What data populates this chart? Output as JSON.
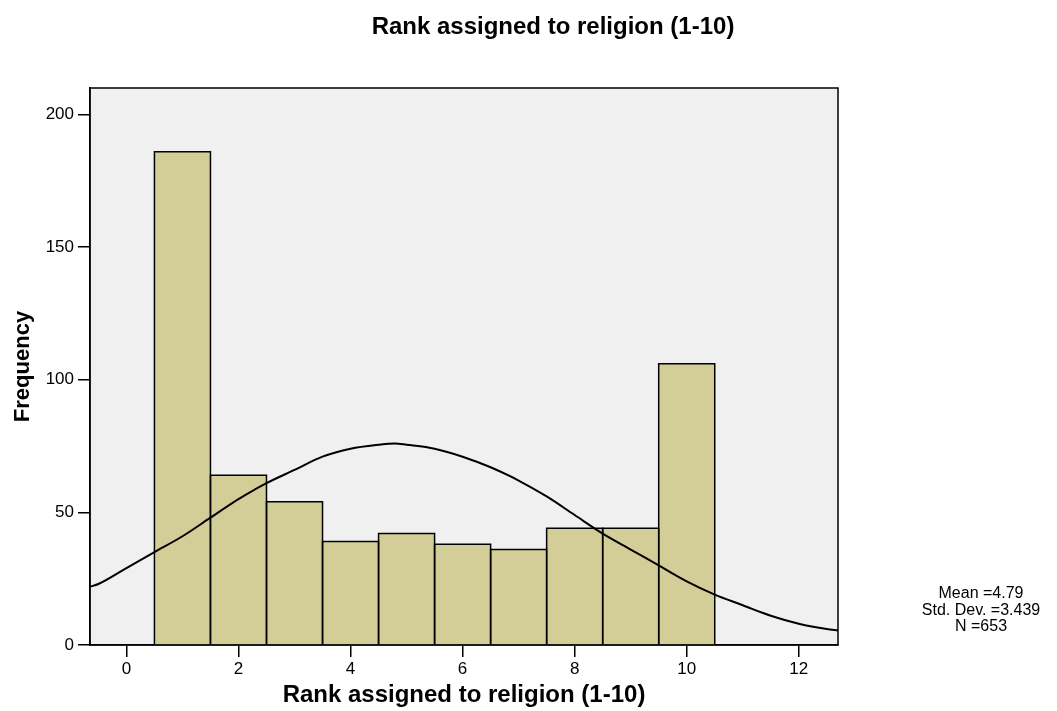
{
  "chart_data": {
    "type": "histogram",
    "title": "Rank assigned to religion (1-10)",
    "xlabel": "Rank assigned to religion (1-10)",
    "ylabel": "Frequency",
    "bins": [
      0.5,
      1.5,
      2.5,
      3.5,
      4.5,
      5.5,
      6.5,
      7.5,
      8.5,
      9.5,
      10.5
    ],
    "series": [
      {
        "color": "#d3ce98",
        "values": [
          186,
          64,
          54,
          39,
          42,
          38,
          36,
          44,
          44,
          106
        ]
      },
      {
        "type": "line",
        "color": "#000000",
        "x": [
          -0.65,
          -0.5,
          0,
          0.5,
          1,
          1.5,
          2,
          2.5,
          3,
          3.5,
          4,
          4.5,
          4.79,
          5,
          5.5,
          6,
          6.5,
          7,
          7.5,
          8,
          8.5,
          9,
          9.5,
          10,
          10.5,
          11,
          11.5,
          12,
          12.5,
          12.7
        ],
        "values": [
          22,
          23,
          29,
          35,
          41,
          48,
          55,
          61,
          66,
          71,
          74,
          75.5,
          76,
          75.5,
          74,
          71,
          67,
          62,
          56,
          49,
          42,
          36,
          30,
          24,
          19,
          15,
          11,
          8,
          6,
          5.5
        ]
      }
    ],
    "xlim": [
      -0.65,
      12.7
    ],
    "xticks": [
      0,
      2,
      4,
      6,
      8,
      10,
      12
    ],
    "ylim": [
      0,
      210
    ],
    "yticks": [
      0,
      50,
      100,
      150,
      200
    ],
    "marker": "none",
    "line_style": "solid",
    "annotations": [
      "Mean =4.79",
      "Std. Dev. =3.439",
      "N =653"
    ]
  }
}
